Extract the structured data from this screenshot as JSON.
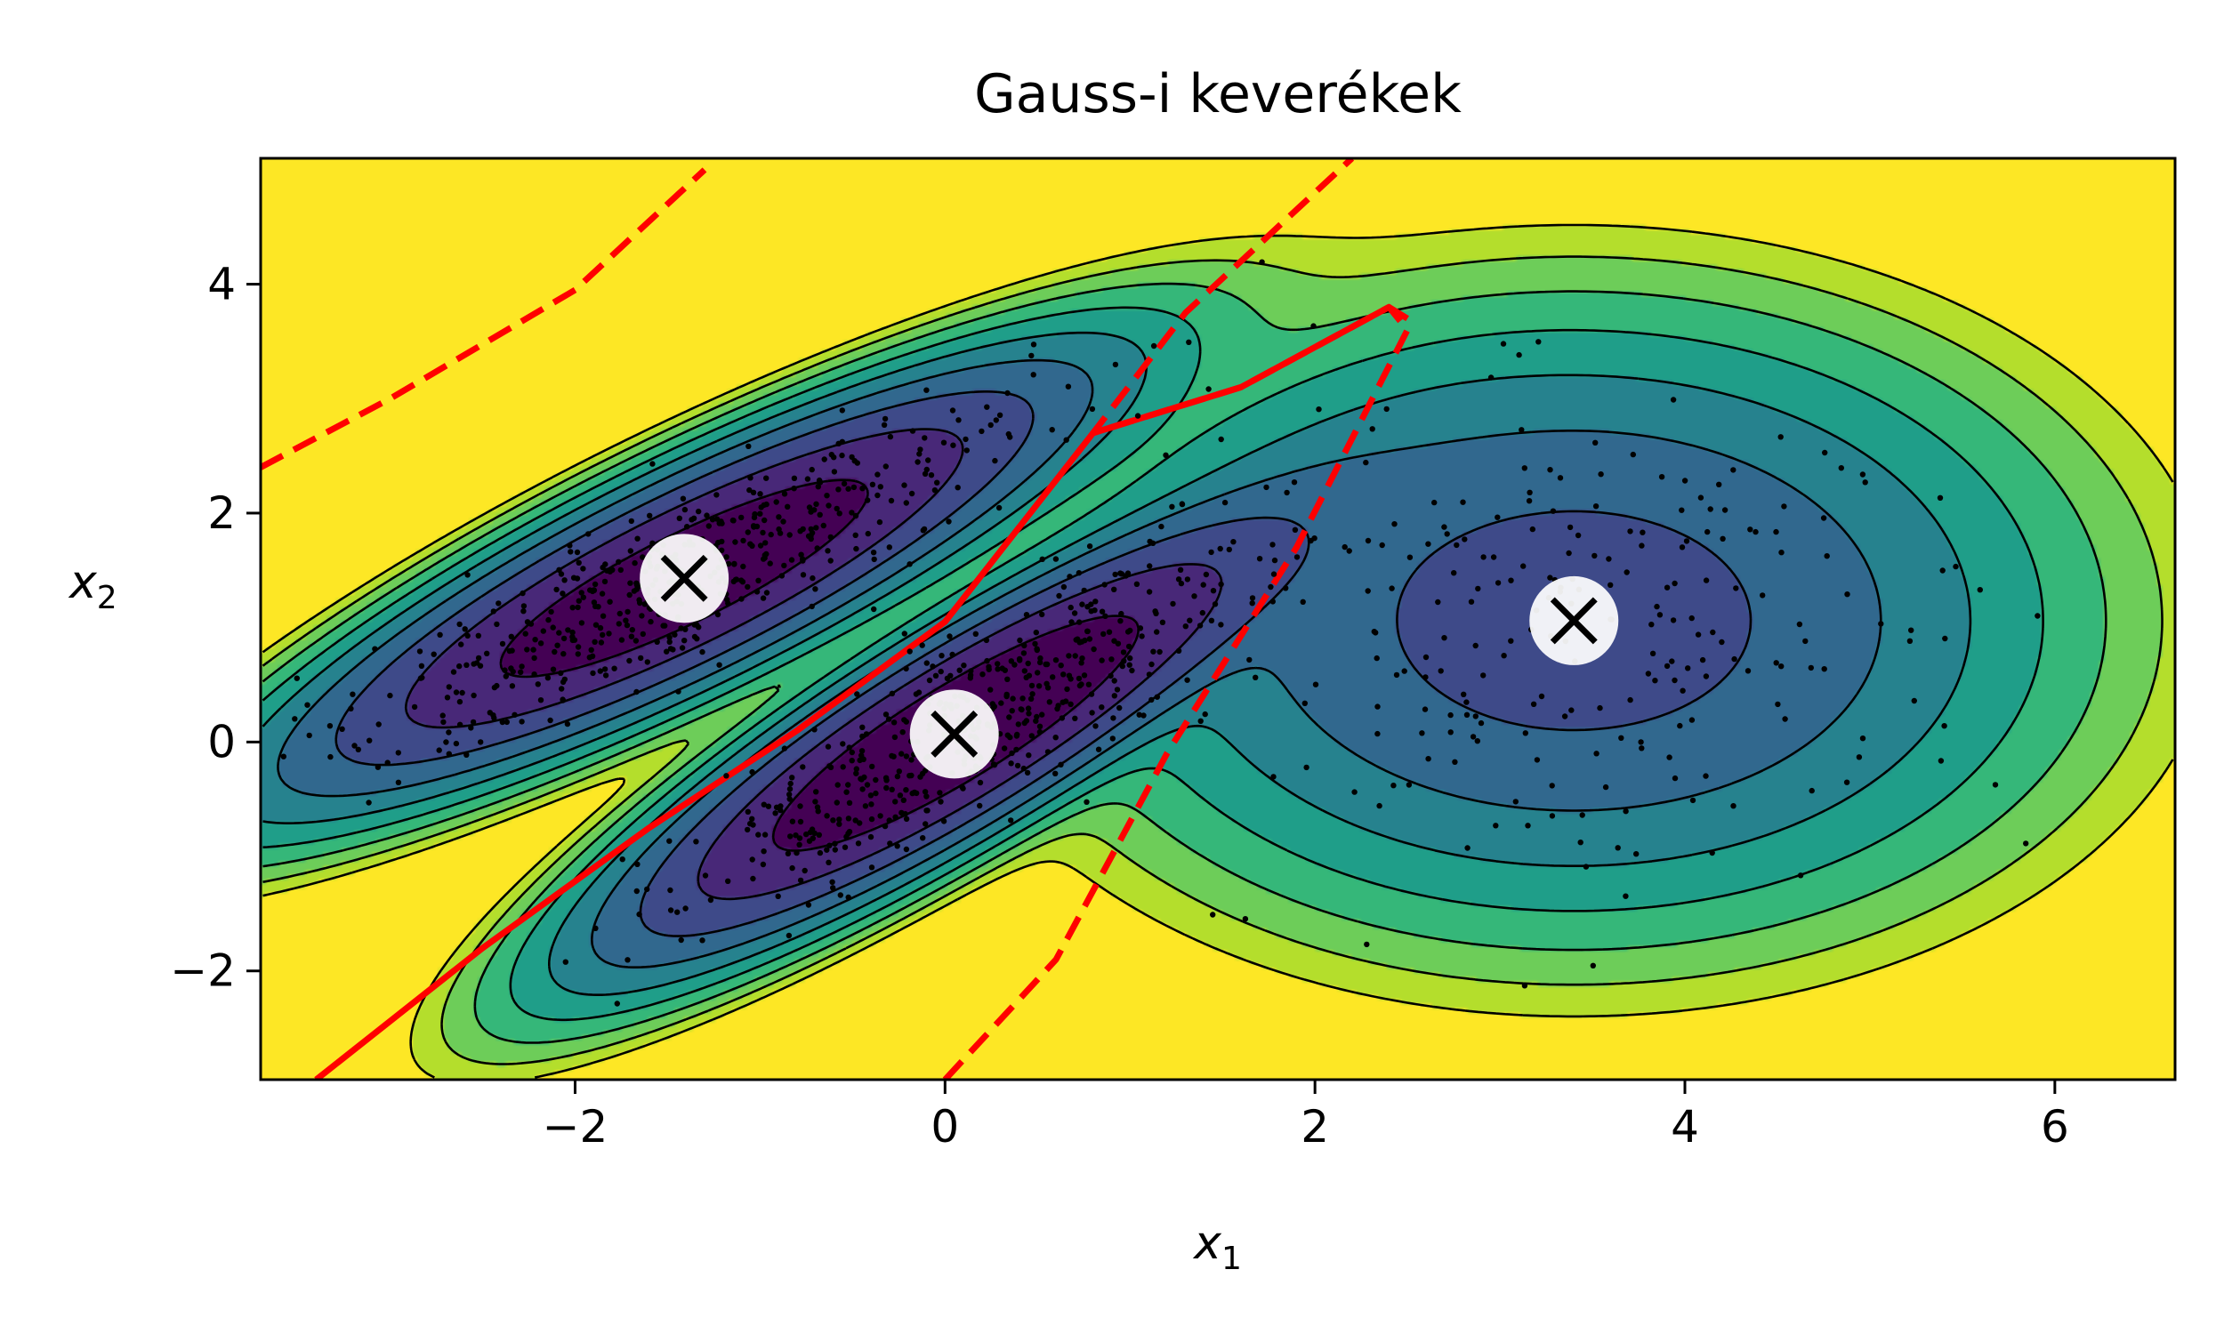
{
  "chart_data": {
    "type": "contour",
    "title": "Gauss-i keverékek",
    "xlabel": "x",
    "xlabel_sub": "1",
    "ylabel": "x",
    "ylabel_sub": "2",
    "xlim": [
      -3.7,
      6.65
    ],
    "ylim": [
      -2.95,
      5.1
    ],
    "xticks": [
      -2,
      0,
      2,
      4,
      6
    ],
    "yticks": [
      -2,
      0,
      2,
      4
    ],
    "xtick_labels": [
      "−2",
      "0",
      "2",
      "4",
      "6"
    ],
    "ytick_labels": [
      "−2",
      "0",
      "2",
      "4"
    ],
    "grid": false,
    "colormap": "viridis",
    "components": [
      {
        "name": "",
        "mean": [
          -1.41,
          1.43
        ],
        "cov": [
          [
            0.8,
            0.6
          ],
          [
            0.6,
            0.6
          ]
        ],
        "weight": 0.39
      },
      {
        "name": "",
        "mean": [
          0.05,
          0.07
        ],
        "cov": [
          [
            0.6,
            0.55
          ],
          [
            0.55,
            0.65
          ]
        ],
        "weight": 0.4
      },
      {
        "name": "",
        "mean": [
          3.4,
          1.06
        ],
        "cov": [
          [
            1.15,
            0.0
          ],
          [
            0.0,
            1.15
          ]
        ],
        "weight": 0.21
      }
    ],
    "centroids": [
      {
        "x": -1.41,
        "y": 1.43
      },
      {
        "x": 0.05,
        "y": 0.07
      },
      {
        "x": 3.4,
        "y": 1.06
      }
    ],
    "decision_boundary": {
      "color": "#ff0000",
      "solid": [
        [
          -3.4,
          -2.95
        ],
        [
          -2.5,
          -1.8
        ],
        [
          -1.6,
          -0.75
        ],
        [
          -0.8,
          0.1
        ],
        [
          0.0,
          1.05
        ],
        [
          0.8,
          2.7
        ],
        [
          1.6,
          3.1
        ],
        [
          2.4,
          3.8
        ],
        [
          2.5,
          3.7
        ]
      ],
      "dashed": [
        [
          [
            -3.7,
            2.4
          ],
          [
            -3.0,
            3.0
          ],
          [
            -2.0,
            3.95
          ],
          [
            -1.3,
            5.0
          ]
        ],
        [
          [
            0.0,
            -2.95
          ],
          [
            0.6,
            -1.9
          ],
          [
            1.2,
            -0.1
          ],
          [
            1.9,
            1.7
          ],
          [
            2.5,
            3.6
          ],
          [
            2.4,
            3.8
          ],
          [
            1.6,
            3.1
          ],
          [
            0.8,
            2.7
          ],
          [
            1.3,
            3.75
          ],
          [
            2.2,
            5.1
          ]
        ]
      ]
    },
    "samples": {
      "color": "#000000",
      "seed": 42,
      "counts": [
        500,
        500,
        250
      ]
    },
    "contour_levels": [
      0.0,
      0.5,
      1.0,
      1.5,
      2.0,
      2.5,
      3.0,
      3.5,
      4.0,
      4.5,
      5.0
    ],
    "contour_line_color": "#000000"
  }
}
